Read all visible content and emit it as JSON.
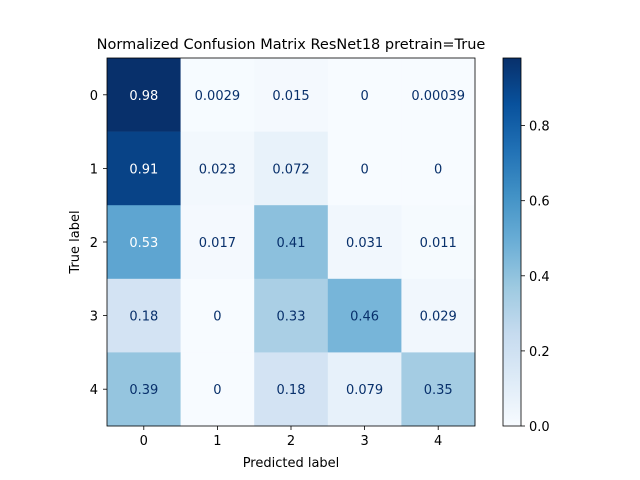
{
  "chart_data": {
    "type": "heatmap",
    "title": "Normalized Confusion Matrix ResNet18 pretrain=True",
    "xlabel": "Predicted label",
    "ylabel": "True label",
    "x_categories": [
      "0",
      "1",
      "2",
      "3",
      "4"
    ],
    "y_categories": [
      "0",
      "1",
      "2",
      "3",
      "4"
    ],
    "values": [
      [
        0.98,
        0.0029,
        0.015,
        0,
        0.00039
      ],
      [
        0.91,
        0.023,
        0.072,
        0,
        0
      ],
      [
        0.53,
        0.017,
        0.41,
        0.031,
        0.011
      ],
      [
        0.18,
        0,
        0.33,
        0.46,
        0.029
      ],
      [
        0.39,
        0,
        0.18,
        0.079,
        0.35
      ]
    ],
    "cell_labels": [
      [
        "0.98",
        "0.0029",
        "0.015",
        "0",
        "0.00039"
      ],
      [
        "0.91",
        "0.023",
        "0.072",
        "0",
        "0"
      ],
      [
        "0.53",
        "0.017",
        "0.41",
        "0.031",
        "0.011"
      ],
      [
        "0.18",
        "0",
        "0.33",
        "0.46",
        "0.029"
      ],
      [
        "0.39",
        "0",
        "0.18",
        "0.079",
        "0.35"
      ]
    ],
    "colormap": "Blues",
    "color_range": [
      0,
      0.98
    ],
    "colorbar_ticks": [
      "0.0",
      "0.2",
      "0.4",
      "0.6",
      "0.8"
    ],
    "colorbar_tick_values": [
      0.0,
      0.2,
      0.4,
      0.6,
      0.8
    ],
    "text_color_light": "#ffffff",
    "text_color_dark": "#08306b"
  }
}
